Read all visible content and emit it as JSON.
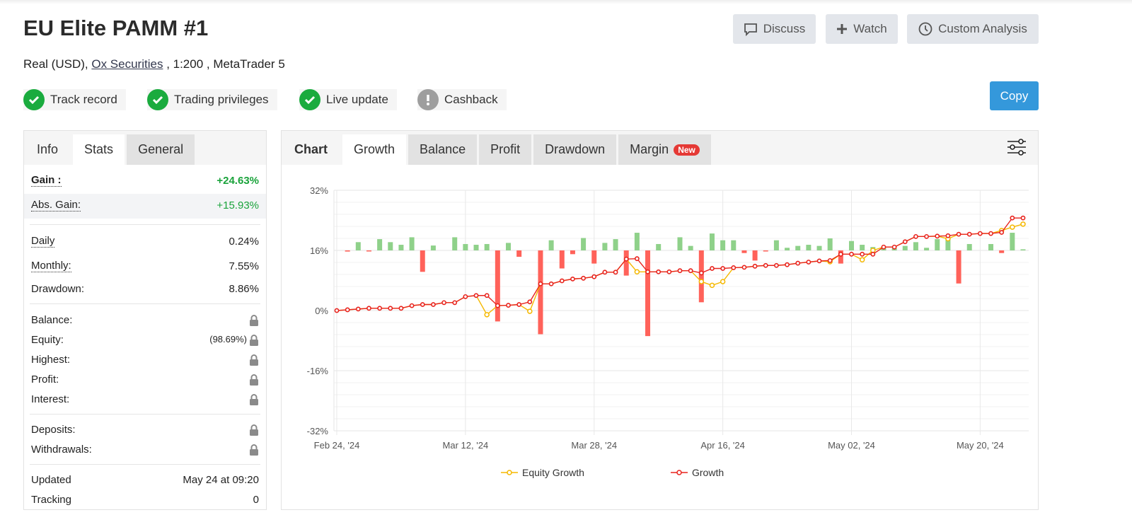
{
  "header": {
    "title": "EU Elite PAMM #1",
    "account_type": "Real (USD),",
    "broker": "Ox Securities",
    "leverage": ", 1:200 ,",
    "platform": "MetaTrader 5",
    "buttons": {
      "discuss": "Discuss",
      "watch": "Watch",
      "custom_analysis": "Custom Analysis",
      "copy": "Copy"
    },
    "badges": [
      {
        "label": "Track record",
        "icon": "check-icon",
        "color": "#1aab3e"
      },
      {
        "label": "Trading privileges",
        "icon": "check-icon",
        "color": "#1aab3e"
      },
      {
        "label": "Live update",
        "icon": "check-icon",
        "color": "#1aab3e"
      },
      {
        "label": "Cashback",
        "icon": "exclamation-icon",
        "color": "#9e9e9e"
      }
    ]
  },
  "stats_panel": {
    "tabs": [
      "Info",
      "Stats",
      "General"
    ],
    "active_tab": "Stats",
    "gain": {
      "label": "Gain :",
      "value": "+24.63%"
    },
    "abs_gain": {
      "label": "Abs. Gain:",
      "value": "+15.93%"
    },
    "daily": {
      "label": "Daily",
      "value": "0.24%"
    },
    "monthly": {
      "label": "Monthly:",
      "value": "7.55%"
    },
    "drawdown": {
      "label": "Drawdown:",
      "value": "8.86%"
    },
    "balance": {
      "label": "Balance:"
    },
    "equity": {
      "label": "Equity:",
      "value": "(98.69%)"
    },
    "highest": {
      "label": "Highest:"
    },
    "profit": {
      "label": "Profit:"
    },
    "interest": {
      "label": "Interest:"
    },
    "deposits": {
      "label": "Deposits:"
    },
    "withdrawals": {
      "label": "Withdrawals:"
    },
    "updated": {
      "label": "Updated",
      "value": "May 24 at 09:20"
    },
    "tracking": {
      "label": "Tracking",
      "value": "0"
    }
  },
  "chart_panel": {
    "label": "Chart",
    "tabs": [
      "Growth",
      "Balance",
      "Profit",
      "Drawdown",
      "Margin"
    ],
    "active_tab": "Growth",
    "new_badge": "New"
  },
  "chart_data": {
    "type": "line",
    "y_ticks": [
      "32%",
      "16%",
      "0%",
      "-16%",
      "-32%"
    ],
    "ylim": [
      -32,
      32
    ],
    "x_ticks": [
      {
        "label": "Feb 24, '24",
        "date": "2024-02-24"
      },
      {
        "label": "Mar 12, '24",
        "date": "2024-03-12"
      },
      {
        "label": "Mar 28, '24",
        "date": "2024-03-28"
      },
      {
        "label": "Apr 16, '24",
        "date": "2024-04-16"
      },
      {
        "label": "May 02, '24",
        "date": "2024-05-02"
      },
      {
        "label": "May 20, '24",
        "date": "2024-05-20"
      }
    ],
    "grid": true,
    "legend_position": "bottom",
    "x": [
      "2024-02-24",
      "2024-02-26",
      "2024-02-27",
      "2024-02-28",
      "2024-02-29",
      "2024-03-01",
      "2024-03-04",
      "2024-03-05",
      "2024-03-06",
      "2024-03-07",
      "2024-03-08",
      "2024-03-11",
      "2024-03-12",
      "2024-03-13",
      "2024-03-14",
      "2024-03-15",
      "2024-03-18",
      "2024-03-19",
      "2024-03-20",
      "2024-03-21",
      "2024-03-22",
      "2024-03-25",
      "2024-03-26",
      "2024-03-27",
      "2024-03-28",
      "2024-04-01",
      "2024-04-02",
      "2024-04-03",
      "2024-04-04",
      "2024-04-05",
      "2024-04-08",
      "2024-04-09",
      "2024-04-10",
      "2024-04-11",
      "2024-04-12",
      "2024-04-15",
      "2024-04-16",
      "2024-04-17",
      "2024-04-18",
      "2024-04-19",
      "2024-04-22",
      "2024-04-23",
      "2024-04-24",
      "2024-04-25",
      "2024-04-26",
      "2024-04-29",
      "2024-04-30",
      "2024-05-01",
      "2024-05-02",
      "2024-05-03",
      "2024-05-06",
      "2024-05-07",
      "2024-05-08",
      "2024-05-09",
      "2024-05-10",
      "2024-05-13",
      "2024-05-14",
      "2024-05-15",
      "2024-05-16",
      "2024-05-17",
      "2024-05-20",
      "2024-05-21",
      "2024-05-22",
      "2024-05-23",
      "2024-05-24"
    ],
    "series": [
      {
        "name": "Equity Growth",
        "color": "#f5b800",
        "values": [
          0,
          0.2,
          0.4,
          0.6,
          0.6,
          0.6,
          0.6,
          1.3,
          1.6,
          1.6,
          2.1,
          2.1,
          3.7,
          4.0,
          -1.1,
          1.3,
          1.4,
          1.6,
          -0.2,
          7.1,
          7.1,
          7.9,
          8.4,
          8.6,
          9.0,
          10.2,
          10.2,
          13.7,
          10.3,
          10.3,
          10.3,
          10.3,
          10.6,
          10.6,
          7.7,
          6.7,
          7.7,
          11.4,
          11.5,
          11.8,
          12.0,
          12.0,
          12.2,
          12.6,
          12.9,
          13.2,
          13.0,
          15.0,
          15.0,
          13.5,
          16.0,
          16.9,
          16.9,
          18.3,
          19.7,
          19.7,
          19.8,
          19.1,
          20.3,
          20.3,
          20.5,
          20.5,
          21.3,
          22.2,
          23.0
        ]
      },
      {
        "name": "Growth",
        "color": "#e8231d",
        "values": [
          0,
          0.2,
          0.4,
          0.6,
          0.6,
          0.6,
          0.6,
          1.3,
          1.6,
          1.6,
          2.1,
          2.1,
          3.7,
          4.0,
          4.0,
          1.3,
          1.4,
          1.6,
          2.3,
          7.1,
          7.1,
          7.9,
          8.4,
          8.6,
          9.0,
          10.2,
          10.2,
          13.7,
          13.8,
          10.3,
          10.3,
          10.3,
          10.6,
          10.6,
          10.0,
          11.2,
          11.2,
          11.4,
          11.5,
          11.8,
          12.0,
          12.0,
          12.2,
          12.6,
          12.9,
          13.2,
          13.3,
          15.0,
          15.0,
          15.0,
          15.0,
          16.9,
          16.9,
          18.3,
          19.7,
          19.7,
          19.8,
          19.9,
          20.3,
          20.3,
          20.5,
          20.5,
          20.8,
          24.63,
          24.63
        ]
      }
    ],
    "bars": {
      "baseline": 16,
      "positive_color": "#8fd18a",
      "negative_color": "#ff625a",
      "values": [
        0,
        -0.3,
        2.2,
        -0.2,
        3.0,
        2.2,
        1.5,
        3.5,
        -5.7,
        1.3,
        0,
        3.5,
        1.7,
        1.5,
        1.7,
        -18.9,
        2.0,
        -1.7,
        0,
        -22.3,
        2.7,
        -4.8,
        -1.0,
        3.3,
        -3.5,
        2.0,
        3.0,
        -6.7,
        4.7,
        -22.8,
        1.7,
        0,
        3.5,
        1.2,
        -13.8,
        4.5,
        2.7,
        2.7,
        -0.7,
        -2.7,
        -0.2,
        2.7,
        0.7,
        1.2,
        1.5,
        1.2,
        3.2,
        -3.5,
        2.5,
        1.5,
        0.9,
        0.7,
        0.6,
        1.2,
        2.2,
        0.7,
        3.0,
        3.0,
        -8.8,
        1.7,
        0,
        1.7,
        -0.7,
        4.7,
        0.3
      ]
    }
  }
}
